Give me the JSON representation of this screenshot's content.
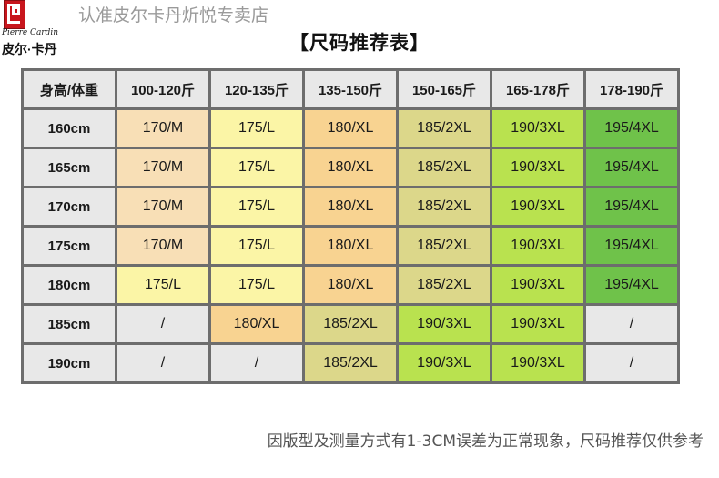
{
  "brand": {
    "script_name": "Pierre Cardin",
    "cn_name": "皮尔·卡丹",
    "store_line": "认准皮尔卡丹炘悦专卖店"
  },
  "title": "【尺码推荐表】",
  "table": {
    "corner": "身高/体重",
    "columns": [
      "100-120斤",
      "120-135斤",
      "135-150斤",
      "150-165斤",
      "165-178斤",
      "178-190斤"
    ],
    "rows": [
      {
        "height": "160cm",
        "cells": [
          "170/M",
          "175/L",
          "180/XL",
          "185/2XL",
          "190/3XL",
          "195/4XL"
        ]
      },
      {
        "height": "165cm",
        "cells": [
          "170/M",
          "175/L",
          "180/XL",
          "185/2XL",
          "190/3XL",
          "195/4XL"
        ]
      },
      {
        "height": "170cm",
        "cells": [
          "170/M",
          "175/L",
          "180/XL",
          "185/2XL",
          "190/3XL",
          "195/4XL"
        ]
      },
      {
        "height": "175cm",
        "cells": [
          "170/M",
          "175/L",
          "180/XL",
          "185/2XL",
          "190/3XL",
          "195/4XL"
        ]
      },
      {
        "height": "180cm",
        "cells": [
          "175/L",
          "175/L",
          "180/XL",
          "185/2XL",
          "190/3XL",
          "195/4XL"
        ]
      },
      {
        "height": "185cm",
        "cells": [
          "/",
          "180/XL",
          "185/2XL",
          "190/3XL",
          "190/3XL",
          "/"
        ]
      },
      {
        "height": "190cm",
        "cells": [
          "/",
          "/",
          "185/2XL",
          "190/3XL",
          "190/3XL",
          "/"
        ]
      }
    ]
  },
  "size_colors": {
    "170/M": "#f8dfb6",
    "175/L": "#fbf5a6",
    "180/XL": "#f8d391",
    "185/2XL": "#dcd78a",
    "190/3XL": "#b9e24f",
    "195/4XL": "#6fc24a",
    "/": "#e8e8e8"
  },
  "note": "因版型及测量方式有1-3CM误差为正常现象，尺码推荐仅供参考"
}
